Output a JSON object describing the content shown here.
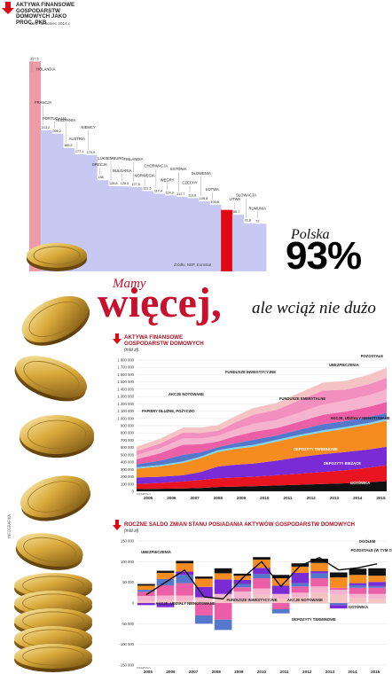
{
  "header": {
    "title": "AKTYWA FINANSOWE GOSPODARSTW DOMOWYCH JAKO PROC. PKB",
    "subtitle": "dane na koniec 2014 r.",
    "source": "Źródło: NBP, Eurostat"
  },
  "polska": {
    "label": "Polska",
    "value": "93%"
  },
  "headline": {
    "lead": "Mamy",
    "main": "więcej,",
    "tail": "ale wciąż nie dużo"
  },
  "credit": "INFOGRAFIKA",
  "colors": {
    "red": "#e30613",
    "title_red": "#b0101f",
    "lavender": "#c7c9f3",
    "pink": "#ef9aa8",
    "gotowka": "#111111",
    "depozyty_biezace": "#e8141f",
    "depozyty_terminowe": "#7a2bd6",
    "akcje_udzialy": "#f68b1f",
    "papiery_dluzne": "#7fd6e8",
    "akcje_notowane": "#5577cc",
    "fundusze": "#ec5fa6",
    "ubezpieczenia": "#f6b3cf",
    "pozostale": "#f5c3c3"
  },
  "chart_data": [
    {
      "type": "bar",
      "title": "AKTYWA FINANSOWE GOSPODARSTW DOMOWYCH JAKO PROC. PKB",
      "subtitle": "dane na koniec 2014 r.",
      "categories": [
        "HOLANDIA",
        "FRANCJA",
        "PORTUGALIA",
        "HISZPANIA",
        "AUSTRIA",
        "NIEMCY",
        "GRECJA",
        "LUKSEMBURG",
        "BULGARIA",
        "FINLANDIA",
        "NORWEGIA",
        "CHORWACJA",
        "WĘGRY",
        "ESTONIA",
        "CZECHY",
        "SŁOWENIA",
        "ŁOTWA",
        "POLSKA",
        "LITWA",
        "SŁOWACJA",
        "RUMUNIA"
      ],
      "values": [
        317.5,
        213.2,
        208.2,
        186.5,
        177.1,
        175.9,
        138,
        128.8,
        128.5,
        127.5,
        121.5,
        117.4,
        114.9,
        112.7,
        110.8,
        105.8,
        100.8,
        93,
        85.7,
        72.8,
        72
      ],
      "value_labels": [
        "317,5",
        "213,2",
        "208,2",
        "186,5",
        "177,1",
        "175,9",
        "138",
        "128,8",
        "128,5",
        "127,5",
        "121,5",
        "117,4",
        "114,9",
        "112,7",
        "110,8",
        "105,8",
        "100,8",
        "",
        "85,7",
        "72,8",
        "72"
      ],
      "highlight": "POLSKA",
      "ylim": [
        0,
        330
      ]
    },
    {
      "type": "area",
      "title": "AKTYWA FINANSOWE GOSPODARSTW DOMOWYCH",
      "ylabel": "(mld zł)",
      "ylim": [
        0,
        1800000
      ],
      "yticks": [
        0,
        100000,
        200000,
        300000,
        400000,
        500000,
        600000,
        700000,
        800000,
        900000,
        1000000,
        1100000,
        1200000,
        1300000,
        1400000,
        1500000,
        1600000,
        1700000,
        1800000
      ],
      "ytick_labels": [
        "0",
        "100 000",
        "200 000",
        "300 000",
        "400 000",
        "500 000",
        "600 000",
        "700 000",
        "800 000",
        "900 000",
        "1 000 000",
        "1 100 000",
        "1 200 000",
        "1 300 000",
        "1 400 000",
        "1 500 000",
        "1 600 000",
        "1 700 000",
        "1 800 000"
      ],
      "x_labels": [
        "2005",
        "2006",
        "2007",
        "2008",
        "2009",
        "2010",
        "2011",
        "2012",
        "2013",
        "2014",
        "2015"
      ],
      "x_caption": "KWARTAŁY",
      "x": [
        2005.0,
        2006.0,
        2007.0,
        2007.75,
        2008.5,
        2009.25,
        2010.0,
        2011.0,
        2012.0,
        2013.0,
        2014.0,
        2015.0,
        2015.75
      ],
      "series": [
        {
          "name": "GOTÓWKA",
          "values": [
            30000,
            35000,
            40000,
            45000,
            60000,
            65000,
            70000,
            80000,
            90000,
            100000,
            110000,
            125000,
            140000
          ]
        },
        {
          "name": "DEPOZYTY BIEŻĄCE",
          "values": [
            70000,
            80000,
            95000,
            110000,
            120000,
            125000,
            130000,
            140000,
            150000,
            165000,
            180000,
            200000,
            215000
          ]
        },
        {
          "name": "DEPOZYTY TERMINOWE",
          "values": [
            90000,
            85000,
            85000,
            110000,
            160000,
            175000,
            180000,
            200000,
            230000,
            245000,
            250000,
            250000,
            255000
          ]
        },
        {
          "name": "AKCJE, UDZIAŁY NIENOTOWANE",
          "values": [
            120000,
            140000,
            170000,
            190000,
            200000,
            215000,
            230000,
            260000,
            280000,
            300000,
            320000,
            340000,
            360000
          ]
        },
        {
          "name": "PAPIERY DŁUŻNE, POŻYCZKI",
          "values": [
            20000,
            20000,
            20000,
            20000,
            25000,
            25000,
            25000,
            25000,
            25000,
            25000,
            25000,
            25000,
            25000
          ]
        },
        {
          "name": "AKCJE NOTOWANE",
          "values": [
            40000,
            60000,
            90000,
            60000,
            40000,
            55000,
            70000,
            60000,
            70000,
            85000,
            80000,
            80000,
            80000
          ]
        },
        {
          "name": "FUNDUSZE INWESTYCYJNE",
          "values": [
            70000,
            100000,
            140000,
            110000,
            80000,
            95000,
            110000,
            100000,
            110000,
            130000,
            130000,
            140000,
            150000
          ]
        },
        {
          "name": "UBEZPIECZENIA",
          "values": [
            60000,
            70000,
            85000,
            80000,
            75000,
            95000,
            110000,
            110000,
            125000,
            140000,
            150000,
            160000,
            170000
          ]
        },
        {
          "name": "FUNDUSZE EMERYTALNE",
          "values": [
            50000,
            65000,
            80000,
            75000,
            70000,
            95000,
            125000,
            140000,
            170000,
            190000,
            150000,
            150000,
            160000
          ]
        },
        {
          "name": "POZOSTAŁE",
          "values": [
            60000,
            65000,
            70000,
            75000,
            80000,
            85000,
            90000,
            95000,
            100000,
            110000,
            120000,
            130000,
            140000
          ]
        }
      ],
      "annotations": [
        "PAPIERY DŁUŻNE, POŻYCZKI",
        "AKCJE NOTOWANE",
        "FUNDUSZE INWESTYCYJNE",
        "UBEZPIECZENIA",
        "FUNDUSZE EMERYTALNE",
        "POZOSTAŁE",
        "AKCJE, UDZIAŁY NIENOTOWANE",
        "DEPOZYTY TERMINOWE",
        "DEPOZYTY BIEŻĄCE",
        "GOTÓWKA"
      ]
    },
    {
      "type": "bar",
      "title": "ROCZNE SALDO ZMIAN STANU POSIADANIA AKTYWÓW GOSPODARSTW DOMOWYCH",
      "ylabel": "(mld zł)",
      "ylim": [
        -150000,
        150000
      ],
      "yticks": [
        -150000,
        -100000,
        -50000,
        0,
        50000,
        100000,
        150000
      ],
      "ytick_labels": [
        "-150 000",
        "-100 000",
        "-50 000",
        "0",
        "50 000",
        "100 000",
        "150 000"
      ],
      "x_labels": [
        "2005",
        "2006",
        "2007",
        "2008",
        "2009",
        "2010",
        "2011",
        "2012",
        "2013",
        "2014",
        "2015"
      ],
      "x_caption": "KWARTAŁY",
      "stacked": true,
      "series": [
        {
          "name": "POZOSTAŁE (W TYM OFE)",
          "values": [
            5000,
            8000,
            6000,
            9000,
            12000,
            8000,
            20000,
            10000,
            15000,
            25000,
            20000,
            12000,
            10000
          ]
        },
        {
          "name": "UBEZPIECZENIA",
          "values": [
            12000,
            10000,
            12000,
            5000,
            10000,
            20000,
            15000,
            12000,
            10000,
            15000,
            12000,
            10000,
            12000
          ]
        },
        {
          "name": "FUNDUSZE INWESTYCYJNE",
          "values": [
            10000,
            25000,
            30000,
            -30000,
            -40000,
            10000,
            25000,
            -15000,
            15000,
            20000,
            5000,
            15000,
            15000
          ]
        },
        {
          "name": "AKCJE NOTOWANE",
          "values": [
            5000,
            15000,
            20000,
            -20000,
            -25000,
            8000,
            10000,
            -10000,
            8000,
            12000,
            -5000,
            6000,
            4000
          ]
        },
        {
          "name": "DEPOZYTY TERMINOWE",
          "values": [
            -5000,
            -10000,
            8000,
            25000,
            35000,
            10000,
            15000,
            20000,
            25000,
            5000,
            -8000,
            5000,
            10000
          ]
        },
        {
          "name": "AKCJE, UDZIAŁY NIENOTOWANE",
          "values": [
            10000,
            15000,
            20000,
            20000,
            15000,
            10000,
            20000,
            18000,
            15000,
            20000,
            25000,
            20000,
            15000
          ]
        },
        {
          "name": "GOTÓWKA",
          "values": [
            4000,
            5000,
            6000,
            5000,
            12000,
            5000,
            6000,
            8000,
            8000,
            10000,
            12000,
            15000,
            18000
          ]
        }
      ],
      "ogolem": [
        20000,
        50000,
        80000,
        15000,
        10000,
        60000,
        100000,
        40000,
        90000,
        110000,
        80000,
        85000,
        95000
      ],
      "annotations": [
        "UBEZPIECZENIA",
        "OGÓŁEM",
        "POZOSTAŁE (W TYM OFE)",
        "AKCJE, UDZIAŁY NIENOTOWANE",
        "FUNDUSZE INWESTYCYJNE",
        "AKCJE NOTOWANE",
        "DEPOZYTY TERMINOWE",
        "GOTÓWKA"
      ]
    }
  ]
}
